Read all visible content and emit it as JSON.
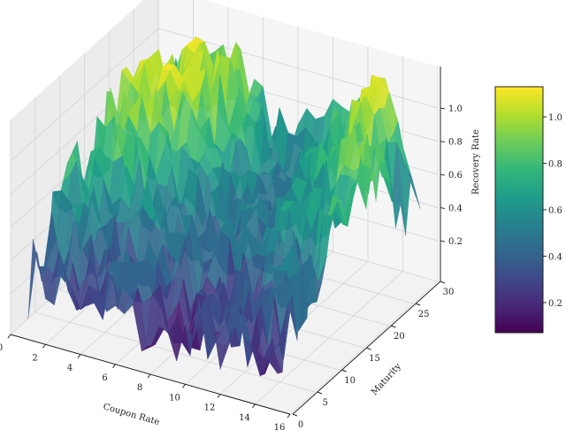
{
  "chart_data": {
    "type": "surface",
    "title": "",
    "xlabel": "Coupon Rate",
    "ylabel": "Maturity",
    "zlabel": "Recovery Rate",
    "xticks": [
      0,
      2,
      4,
      6,
      8,
      10,
      12,
      14,
      16
    ],
    "yticks": [
      0,
      5,
      10,
      15,
      20,
      25,
      30
    ],
    "zticks": [
      "0.2",
      "0.4",
      "0.6",
      "0.8",
      "1.0"
    ],
    "xlim": [
      0,
      16
    ],
    "ylim": [
      0,
      30
    ],
    "colormap": "viridis",
    "colorbar": {
      "range": [
        0.07,
        1.13
      ],
      "ticks": [
        "0.2",
        "0.4",
        "0.6",
        "0.8",
        "1.0"
      ]
    },
    "grid": true,
    "coupon": [
      1,
      3,
      5,
      7,
      9,
      11,
      13,
      15
    ],
    "maturity": [
      0,
      5,
      10,
      15,
      20,
      25,
      30
    ],
    "recovery": [
      [
        0.3,
        0.35,
        0.25,
        0.2,
        0.15,
        0.3,
        0.25,
        0.2
      ],
      [
        0.55,
        0.4,
        0.3,
        0.45,
        0.25,
        0.35,
        0.3,
        0.4
      ],
      [
        0.75,
        0.5,
        0.6,
        0.35,
        0.5,
        0.3,
        0.45,
        0.5
      ],
      [
        0.85,
        0.9,
        0.6,
        0.55,
        0.4,
        0.55,
        0.6,
        0.75
      ],
      [
        0.9,
        1.0,
        0.95,
        0.6,
        0.45,
        0.5,
        0.75,
        0.9
      ],
      [
        0.8,
        0.95,
        1.05,
        0.7,
        0.5,
        0.7,
        1.05,
        0.6
      ],
      [
        0.7,
        0.85,
        0.9,
        0.6,
        0.55,
        0.8,
        1.1,
        0.3
      ]
    ]
  }
}
